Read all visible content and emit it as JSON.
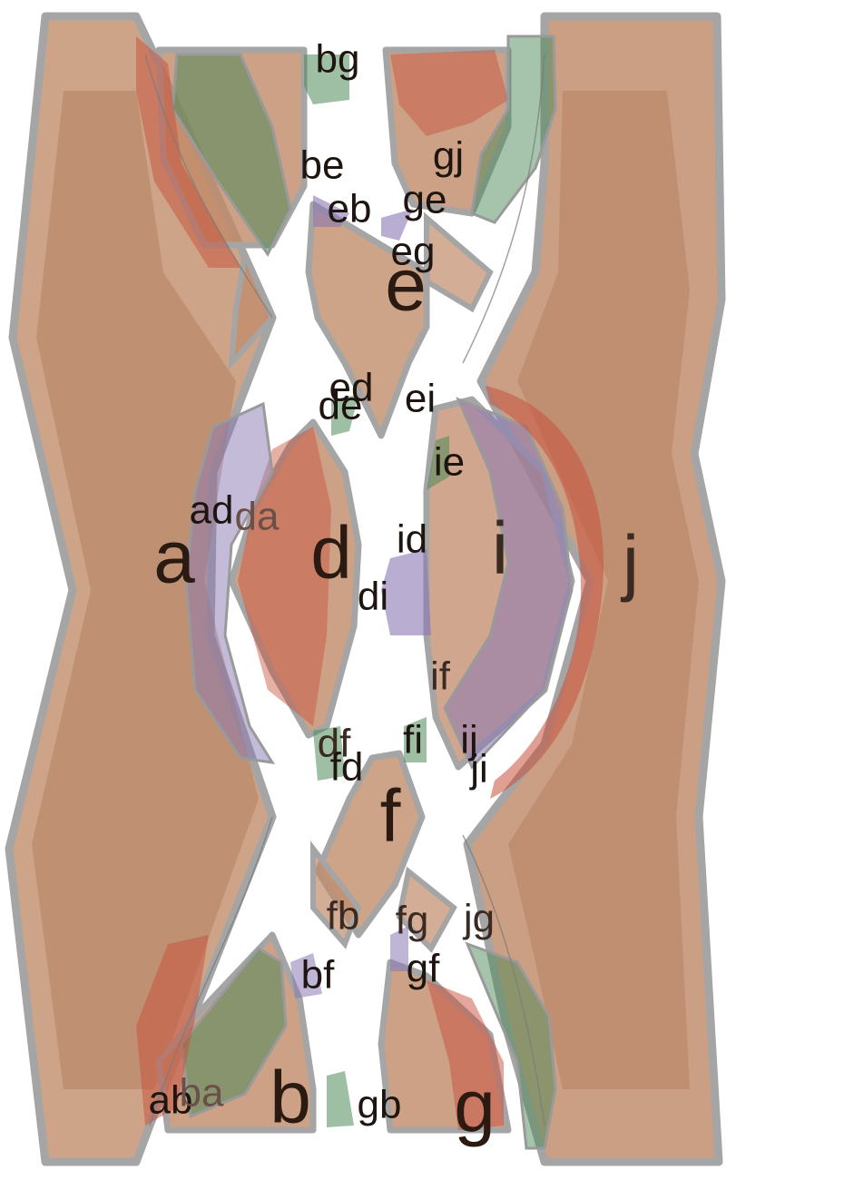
{
  "colors": {
    "block": "#c08a68",
    "block_stroke": "#a5a5a5",
    "red": "#c8503c",
    "green": "#4e8a5a",
    "purple": "#8a78b4",
    "background": "#ffffff"
  },
  "labels": {
    "region_a": "a",
    "region_b": "b",
    "region_d": "d",
    "region_e": "e",
    "region_f": "f",
    "region_g": "g",
    "region_i": "i",
    "region_j": "j",
    "bg": "bg",
    "be": "be",
    "eb": "eb",
    "gj": "gj",
    "ge": "ge",
    "eg": "eg",
    "ed": "ed",
    "de": "de",
    "ei": "ei",
    "ie": "ie",
    "ad": "ad",
    "da": "da",
    "id": "id",
    "di": "di",
    "if": "if",
    "df": "df",
    "fd": "fd",
    "fi": "fi",
    "ij": "ij",
    "ji": "ji",
    "fb": "fb",
    "fg": "fg",
    "jg": "jg",
    "bf": "bf",
    "gf": "gf",
    "ab": "ab",
    "ba": "ba",
    "gb": "gb"
  }
}
